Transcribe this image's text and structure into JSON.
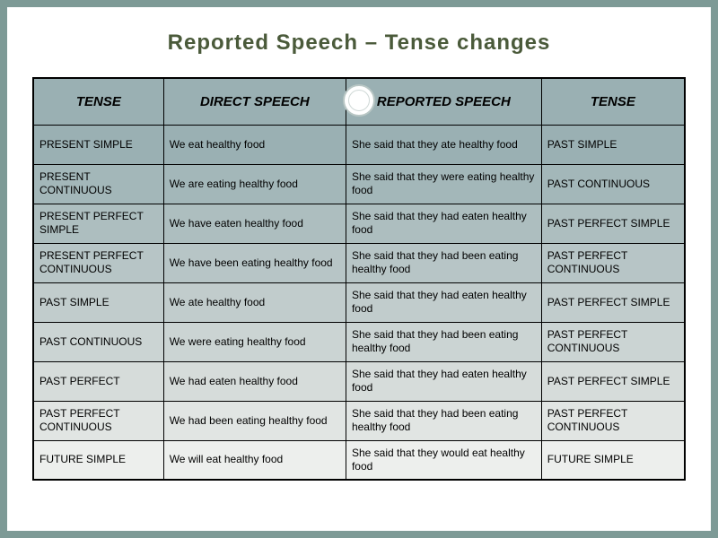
{
  "title": "Reported Speech – Tense changes",
  "table": {
    "headers": [
      "TENSE",
      "DIRECT SPEECH",
      "REPORTED SPEECH",
      "TENSE"
    ],
    "columns_width_pct": [
      20,
      28,
      30,
      22
    ],
    "header_bg": "#9ab0b3",
    "row_bg_gradient": [
      "#9ab0b3",
      "#a3b7b9",
      "#adbebf",
      "#b7c5c6",
      "#c1cccc",
      "#cbd4d3",
      "#d6dcda",
      "#e1e5e3",
      "#edefed"
    ],
    "border_color": "#000000",
    "font_family": "Arial",
    "header_fontsize": 15,
    "cell_fontsize": 12,
    "rows": [
      [
        "PRESENT SIMPLE",
        "We eat healthy food",
        "She said that they ate healthy food",
        "PAST SIMPLE"
      ],
      [
        "PRESENT CONTINUOUS",
        "We are eating healthy food",
        "She said that they were eating healthy food",
        "PAST CONTINUOUS"
      ],
      [
        "PRESENT PERFECT SIMPLE",
        "We have eaten healthy food",
        "She said that they had eaten healthy food",
        "PAST PERFECT SIMPLE"
      ],
      [
        "PRESENT PERFECT CONTINUOUS",
        "We have been eating healthy food",
        "She said that they had been eating  healthy food",
        "PAST PERFECT CONTINUOUS"
      ],
      [
        "PAST SIMPLE",
        "We ate healthy food",
        "She said that they had eaten healthy food",
        "PAST PERFECT SIMPLE"
      ],
      [
        "PAST CONTINUOUS",
        "We were eating healthy food",
        "She said that they had been eating healthy food",
        "PAST PERFECT CONTINUOUS"
      ],
      [
        "PAST PERFECT",
        "We had eaten healthy food",
        "She said that they had eaten healthy food",
        "PAST PERFECT SIMPLE"
      ],
      [
        "PAST PERFECT CONTINUOUS",
        "We had been eating healthy food",
        "She said that they had been eating  healthy food",
        "PAST PERFECT CONTINUOUS"
      ],
      [
        "FUTURE SIMPLE",
        "We will eat healthy food",
        "She said that they would eat healthy food",
        "FUTURE SIMPLE"
      ]
    ]
  },
  "title_color": "#4a5a3a",
  "title_fontsize": 24,
  "slide_bg": "#ffffff",
  "outer_bg": "#7d9a96",
  "ornament_border": "#b8c6c4"
}
